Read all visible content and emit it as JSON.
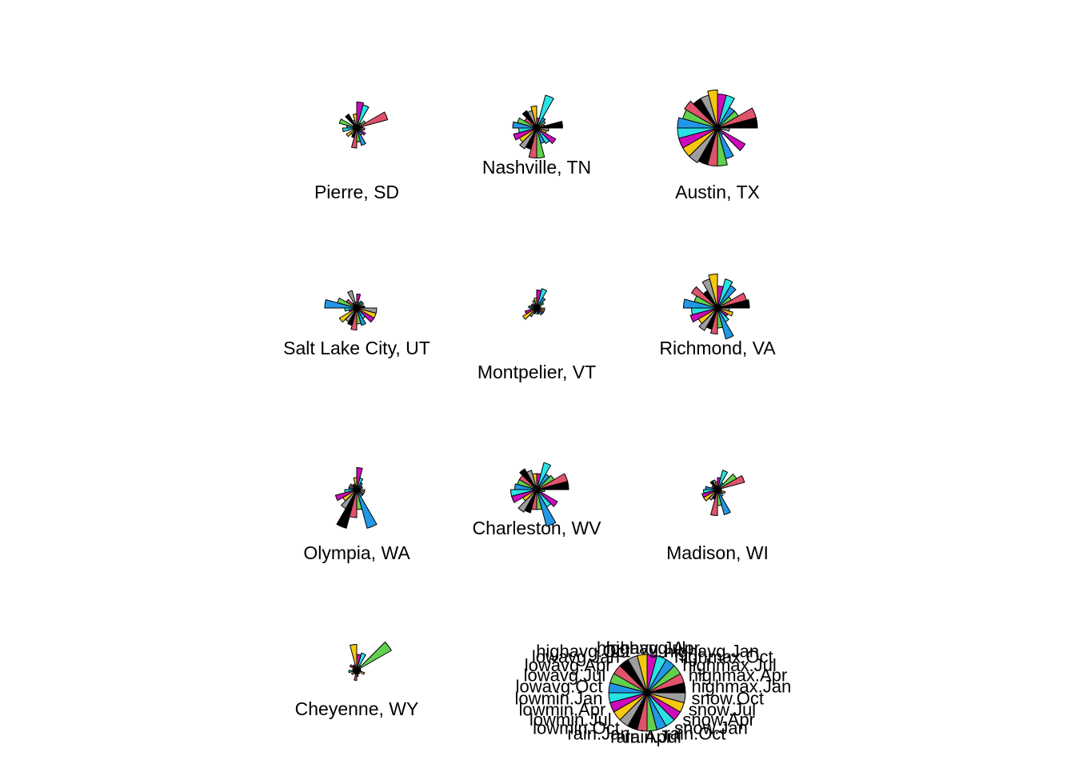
{
  "palette": [
    "#000000",
    "#DF536B",
    "#61D04F",
    "#2297E6",
    "#28E2E5",
    "#CD0BBC",
    "#F5C710",
    "#9E9E9E"
  ],
  "chart_data": {
    "type": "star-segments",
    "title": "",
    "variables": [
      "highmax.Jan",
      "highmax.Apr",
      "highmax.Jul",
      "highmax.Oct",
      "highavg.Jan",
      "highavg.Apr",
      "highavg.Jul",
      "highavg.Oct",
      "lowavg.Jan",
      "lowavg.Apr",
      "lowavg.Jul",
      "lowavg.Oct",
      "lowmin.Jan",
      "lowmin.Apr",
      "lowmin.Jul",
      "lowmin.Oct",
      "rain.Jan",
      "rain.Apr",
      "rain.Jul",
      "rain.Oct",
      "snow.Jan",
      "snow.Apr",
      "snow.Jul",
      "snow.Oct"
    ],
    "key_labels": [
      "highmax.Jan",
      "highmax.Apr",
      "highmax.Jul",
      "highmax.Oct",
      "highavg.Jan",
      "highavg.Apr",
      "highavg.Jul",
      "highavg.Oct",
      "lowavg.Jan",
      "lowavg.Apr",
      "lowavg.Jul",
      "lowavg.Oct",
      "lowmin.Jan",
      "lowmin.Apr",
      "lowmin.Jul",
      "lowmin.Oct",
      "rain.Jan",
      "rain.Apr",
      "rain.Jul",
      "rain.Oct",
      "snow.Jan",
      "snow.Apr",
      "snow.Jul",
      "snow.Oct"
    ],
    "series": [
      {
        "name": "Pierre, SD",
        "values": [
          0.15,
          0.8,
          0.25,
          0.15,
          0.6,
          0.65,
          0.35,
          0.2,
          0.4,
          0.1,
          0.45,
          0.25,
          0.35,
          0.1,
          0.3,
          0.2,
          0.25,
          0.5,
          0.35,
          0.45,
          0.2,
          0.25,
          0.15,
          0.2
        ]
      },
      {
        "name": "Nashville, TN",
        "values": [
          0.65,
          0.2,
          0.25,
          0.3,
          0.85,
          0.25,
          0.55,
          0.45,
          0.5,
          0.35,
          0.5,
          0.6,
          0.45,
          0.6,
          0.5,
          0.6,
          0.55,
          0.75,
          0.75,
          0.4,
          0.45,
          0.55,
          0.25,
          0.3
        ]
      },
      {
        "name": "Austin, TX",
        "values": [
          1.0,
          1.0,
          0.6,
          0.6,
          0.85,
          0.85,
          0.95,
          0.85,
          0.85,
          0.95,
          0.9,
          1.0,
          1.0,
          1.0,
          1.0,
          1.0,
          0.95,
          0.95,
          0.95,
          0.8,
          0.2,
          0.8,
          0.1,
          0.3
        ]
      },
      {
        "name": "Salt Lake City, UT",
        "values": [
          0.2,
          0.15,
          0.2,
          0.2,
          0.15,
          0.35,
          0.15,
          0.45,
          0.15,
          0.3,
          0.5,
          0.8,
          0.3,
          0.2,
          0.5,
          0.4,
          0.45,
          0.55,
          0.4,
          0.45,
          0.3,
          0.5,
          0.5,
          0.5
        ]
      },
      {
        "name": "Montpelier, VT",
        "values": [
          0.05,
          0.1,
          0.2,
          0.3,
          0.5,
          0.45,
          0.25,
          0.2,
          0.1,
          0.15,
          0.15,
          0.2,
          0.15,
          0.3,
          0.4,
          0.25,
          0.15,
          0.05,
          0.15,
          0.15,
          0.2,
          0.2,
          0.2,
          0.2
        ]
      },
      {
        "name": "Richmond, VA",
        "values": [
          0.8,
          0.75,
          0.4,
          0.65,
          0.75,
          0.55,
          0.85,
          0.75,
          0.5,
          0.75,
          0.6,
          0.85,
          0.65,
          0.7,
          0.55,
          0.65,
          0.55,
          0.65,
          0.5,
          0.8,
          0.4,
          0.3,
          0.4,
          0.3
        ]
      },
      {
        "name": "Olympia, WA",
        "values": [
          0.1,
          0.15,
          0.15,
          0.2,
          0.3,
          0.55,
          0.3,
          0.15,
          0.15,
          0.2,
          0.2,
          0.2,
          0.3,
          0.55,
          0.4,
          0.55,
          1.0,
          0.7,
          0.5,
          1.0,
          0.2,
          0.2,
          0.2,
          0.2
        ]
      },
      {
        "name": "Charleston, WV",
        "values": [
          0.8,
          0.8,
          0.5,
          0.45,
          0.7,
          0.4,
          0.4,
          0.5,
          0.6,
          0.5,
          0.5,
          0.55,
          0.65,
          0.65,
          0.4,
          0.65,
          0.6,
          0.5,
          0.5,
          0.95,
          0.5,
          0.6,
          0.15,
          0.2
        ]
      },
      {
        "name": "Madison, WI",
        "values": [
          0.1,
          0.7,
          0.55,
          0.2,
          0.5,
          0.3,
          0.2,
          0.25,
          0.25,
          0.15,
          0.15,
          0.3,
          0.35,
          0.4,
          0.4,
          0.3,
          0.25,
          0.65,
          0.4,
          0.65,
          0.2,
          0.15,
          0.2,
          0.1
        ]
      },
      {
        "name": "Cheyenne, WY",
        "values": [
          0.1,
          0.1,
          1.0,
          0.15,
          0.45,
          0.4,
          0.65,
          0.15,
          0.15,
          0.2,
          0.1,
          0.1,
          0.2,
          0.1,
          0.15,
          0.1,
          0.1,
          0.25,
          0.15,
          0.1,
          0.1,
          0.05,
          0.2,
          0.1
        ]
      }
    ]
  }
}
